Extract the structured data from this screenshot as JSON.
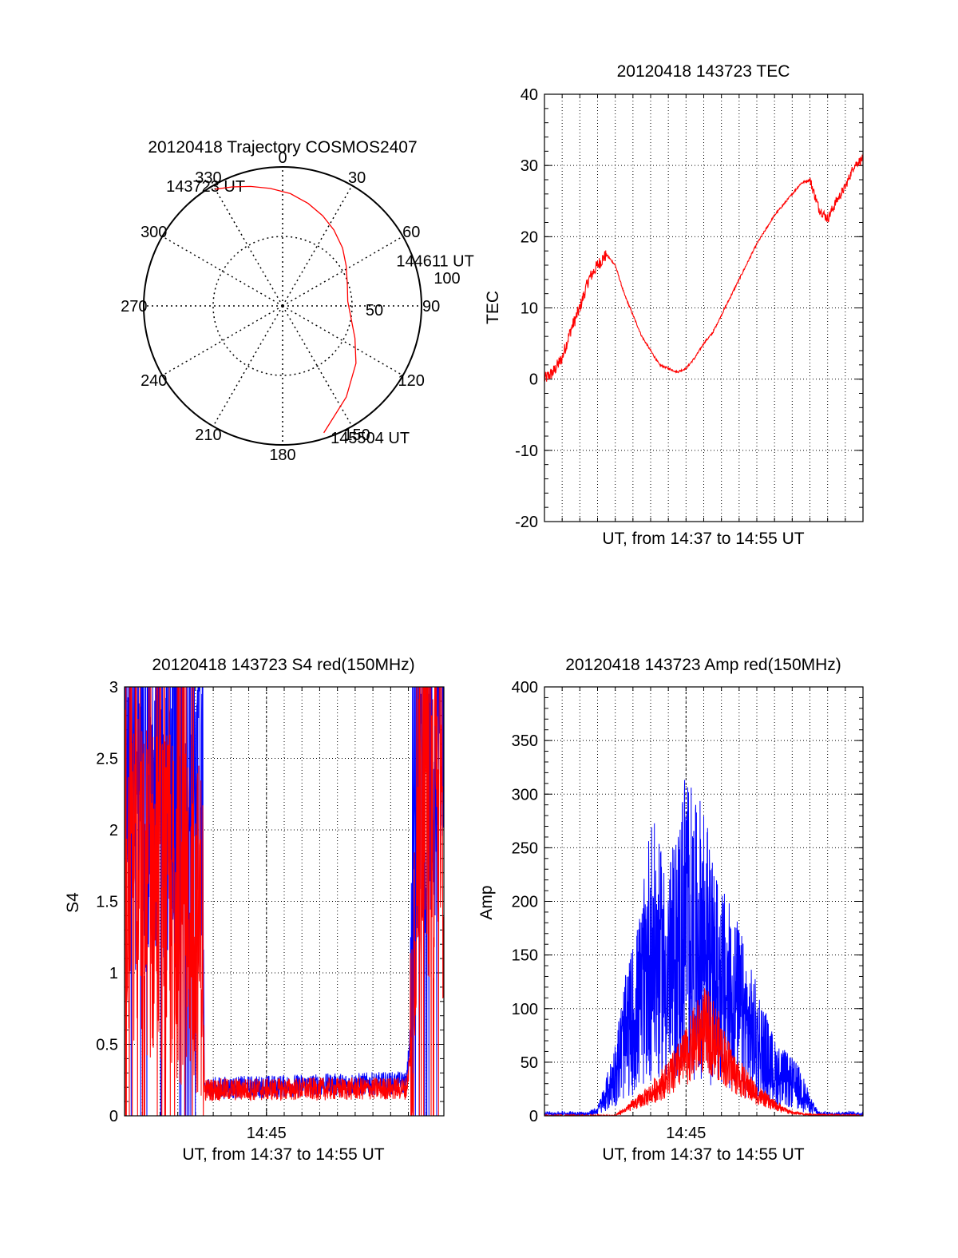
{
  "colors": {
    "red": "#ff0000",
    "blue": "#0000ff",
    "axis": "#000000",
    "grid": "#000000"
  },
  "chart_data": [
    {
      "id": "trajectory",
      "type": "polar",
      "title": "20120418 Trajectory COSMOS2407",
      "angle_labels": [
        "0",
        "30",
        "60",
        "90",
        "120",
        "150",
        "180",
        "210",
        "240",
        "270",
        "300",
        "330"
      ],
      "radius_labels": [
        "50",
        "100"
      ],
      "rlim": [
        0,
        100
      ],
      "point_labels": [
        "143723 UT",
        "144611 UT",
        "145504 UT"
      ],
      "series": [
        {
          "color": "red",
          "az": [
            330,
            337,
            345,
            354,
            4,
            14,
            24,
            34,
            46,
            58,
            72,
            86,
            100,
            114,
            128,
            145,
            162
          ],
          "r": [
            97,
            93,
            89,
            85,
            81,
            76,
            71,
            66,
            60,
            54,
            49,
            47,
            50,
            57,
            67,
            80,
            96
          ]
        }
      ],
      "markers": [
        {
          "label_index": 0,
          "az": 330,
          "r": 97
        },
        {
          "label_index": 1,
          "az": 72,
          "r": 49
        },
        {
          "label_index": 2,
          "az": 162,
          "r": 96
        }
      ]
    },
    {
      "id": "tec",
      "type": "line",
      "title": "20120418 143723 TEC",
      "xlabel": "UT, from 14:37 to 14:55 UT",
      "ylabel": "TEC",
      "xlim": [
        0,
        18
      ],
      "ylim": [
        -20,
        40
      ],
      "y_ticks": [
        "-20",
        "-10",
        "0",
        "10",
        "20",
        "30",
        "40"
      ],
      "x_tick_labels": [],
      "grid": true,
      "series": [
        {
          "color": "red",
          "x": [
            0,
            0.5,
            1,
            1.5,
            2,
            2.5,
            3,
            3.5,
            4,
            4.5,
            5,
            5.5,
            6,
            6.5,
            7,
            7.5,
            8,
            8.5,
            9,
            9.5,
            10,
            10.5,
            11,
            11.5,
            12,
            12.5,
            13,
            13.5,
            14,
            14.5,
            15,
            15.5,
            16,
            16.5,
            17,
            17.5,
            18
          ],
          "y": [
            0,
            1,
            3,
            7,
            10,
            14,
            16,
            17.5,
            16,
            12,
            9,
            6,
            4,
            2,
            1.5,
            1,
            1.5,
            3,
            5,
            6.5,
            9,
            11.5,
            14,
            16.5,
            19,
            21,
            23,
            24.5,
            26,
            27.5,
            28,
            24,
            22.5,
            25,
            27,
            30,
            31
          ]
        }
      ]
    },
    {
      "id": "s4",
      "type": "line",
      "title": "20120418 143723 S4 red(150MHz)",
      "xlabel": "UT, from 14:37 to 14:55 UT",
      "ylabel": "S4",
      "xlim": [
        0,
        18
      ],
      "ylim": [
        0,
        3
      ],
      "y_ticks": [
        "0",
        "0.5",
        "1",
        "1.5",
        "2",
        "2.5",
        "3"
      ],
      "x_tick_labels": [
        "14:45"
      ],
      "x_tick_values": [
        8
      ],
      "grid": true,
      "series": [
        {
          "color": "blue",
          "x": [
            0,
            4.4,
            4.5,
            15.9,
            16.2,
            16.5,
            18
          ],
          "y": [
            2.2,
            2.2,
            0.16,
            0.2,
            0.7,
            2.5,
            2.4
          ]
        },
        {
          "color": "red",
          "x": [
            0,
            4.4,
            4.5,
            15.9,
            16.2,
            16.5,
            18
          ],
          "y": [
            1.7,
            1.3,
            0.15,
            0.16,
            0.5,
            2.2,
            2.0
          ]
        }
      ]
    },
    {
      "id": "amp",
      "type": "line",
      "title": "20120418 143723 Amp red(150MHz)",
      "xlabel": "UT, from 14:37 to 14:55 UT",
      "ylabel": "Amp",
      "xlim": [
        0,
        18
      ],
      "ylim": [
        0,
        400
      ],
      "y_ticks": [
        "0",
        "50",
        "100",
        "150",
        "200",
        "250",
        "300",
        "350",
        "400"
      ],
      "x_tick_labels": [
        "14:45"
      ],
      "x_tick_values": [
        8
      ],
      "grid": true,
      "series": [
        {
          "color": "blue",
          "x": [
            0,
            2.5,
            3,
            3.5,
            4,
            4.5,
            5,
            5.5,
            6,
            6.5,
            7,
            7.5,
            8,
            8.5,
            9,
            9.5,
            10,
            10.5,
            11,
            11.5,
            12,
            12.5,
            13,
            13.5,
            14,
            14.5,
            15,
            15.5,
            18
          ],
          "y": [
            2,
            2,
            5,
            20,
            40,
            70,
            90,
            110,
            160,
            140,
            130,
            150,
            190,
            160,
            170,
            130,
            120,
            110,
            100,
            80,
            70,
            55,
            40,
            35,
            30,
            25,
            10,
            2,
            2
          ]
        },
        {
          "color": "red",
          "x": [
            0,
            4,
            4.5,
            5,
            5.5,
            6,
            6.5,
            7,
            7.5,
            8,
            8.5,
            9,
            9.5,
            10,
            10.5,
            11,
            11.5,
            12,
            12.5,
            13,
            13.5,
            14,
            15,
            18
          ],
          "y": [
            0,
            0,
            5,
            10,
            15,
            20,
            28,
            35,
            45,
            55,
            70,
            80,
            75,
            60,
            45,
            35,
            28,
            20,
            15,
            10,
            6,
            3,
            1,
            0
          ]
        }
      ]
    }
  ]
}
